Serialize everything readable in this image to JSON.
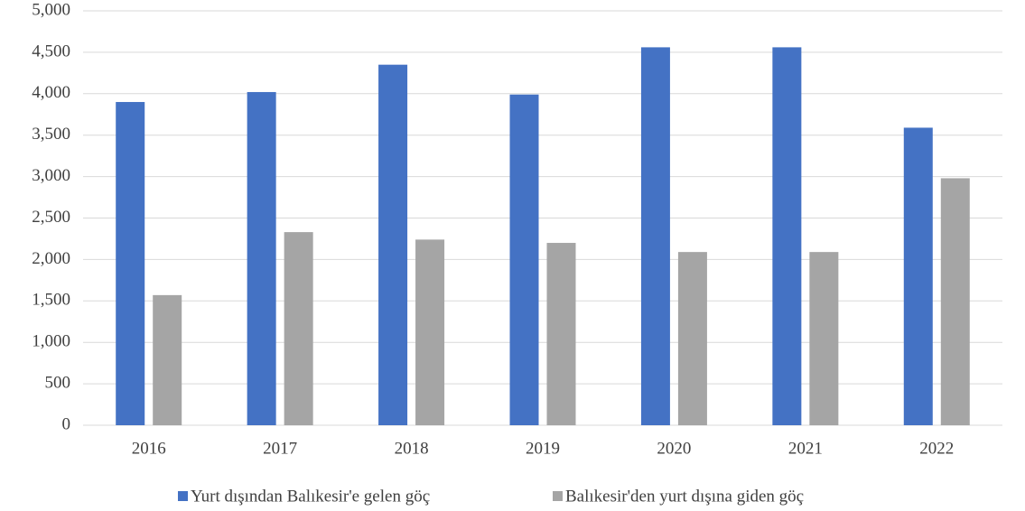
{
  "chart_data": {
    "type": "bar",
    "categories": [
      "2016",
      "2017",
      "2018",
      "2019",
      "2020",
      "2021",
      "2022"
    ],
    "series": [
      {
        "name": "Yurt dışından Balıkesir'e gelen göç",
        "color": "#4472c4",
        "values": [
          3900,
          4020,
          4350,
          3990,
          4560,
          4560,
          3590
        ]
      },
      {
        "name": "Balıkesir'den yurt dışına giden göç",
        "color": "#a5a5a5",
        "values": [
          1570,
          2330,
          2240,
          2200,
          2090,
          2090,
          2980
        ]
      }
    ],
    "ylim": [
      0,
      5000
    ],
    "yticks": [
      0,
      500,
      {
        "value": 1000,
        "label": "1,000"
      },
      {
        "value": 1500,
        "label": "1,500"
      },
      {
        "value": 2000,
        "label": "2,000"
      },
      {
        "value": 2500,
        "label": "2,500"
      },
      {
        "value": 3000,
        "label": "3,000"
      },
      {
        "value": 3500,
        "label": "3,500"
      },
      {
        "value": 4000,
        "label": "4,000"
      },
      {
        "value": 4500,
        "label": "4,500"
      },
      {
        "value": 5000,
        "label": "5,000"
      }
    ],
    "grid": true,
    "legend": "bottom"
  }
}
